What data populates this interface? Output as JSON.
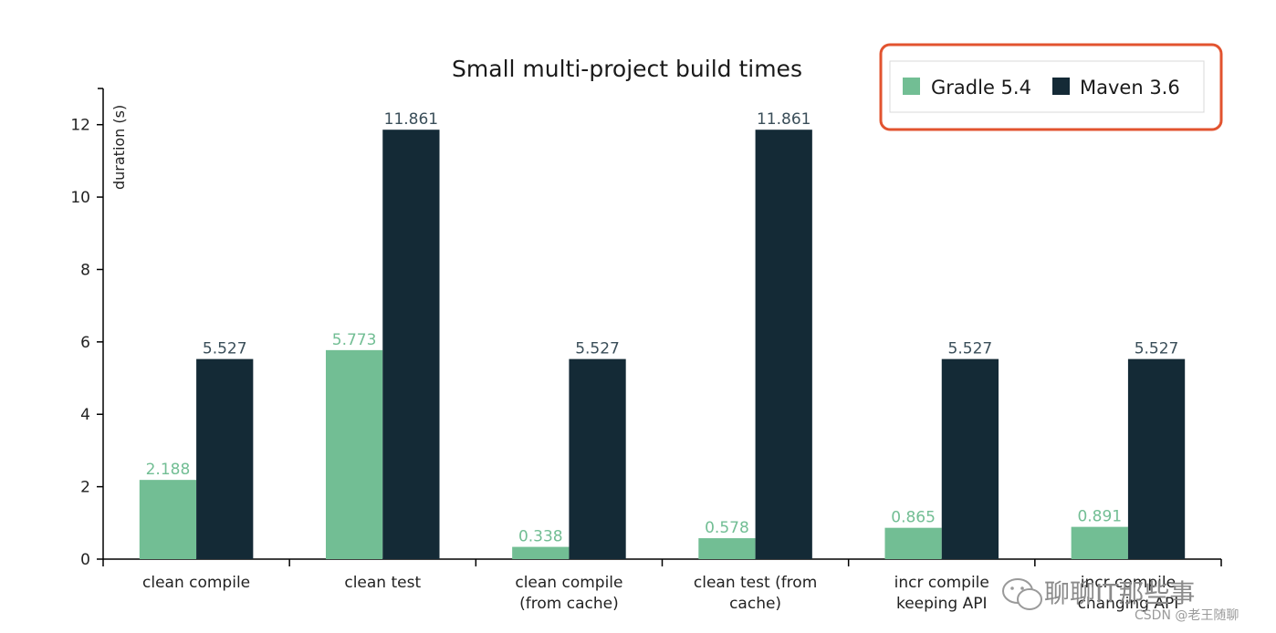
{
  "chart_data": {
    "type": "bar",
    "title": "Small multi-project build times",
    "ylabel": "duration (s)",
    "xlabel": "",
    "ylim": [
      0,
      13
    ],
    "yticks": [
      0,
      2,
      4,
      6,
      8,
      10,
      12
    ],
    "categories": [
      [
        "clean compile"
      ],
      [
        "clean test"
      ],
      [
        "clean compile",
        "(from cache)"
      ],
      [
        "clean test (from",
        "cache)"
      ],
      [
        "incr compile",
        "keeping API"
      ],
      [
        "incr compile",
        "changing API"
      ]
    ],
    "series": [
      {
        "name": "Gradle 5.4",
        "color": "#72be94",
        "labels": [
          "2.188",
          "5.773",
          "0.338",
          "0.578",
          "0.865",
          "0.891"
        ],
        "values": [
          2.188,
          5.773,
          0.338,
          0.578,
          0.865,
          0.891
        ]
      },
      {
        "name": "Maven 3.6",
        "color": "#142a36",
        "labels": [
          "5.527",
          "11.861",
          "5.527",
          "11.861",
          "5.527",
          "5.527"
        ],
        "values": [
          5.527,
          11.861,
          5.527,
          11.861,
          5.527,
          5.527
        ]
      }
    ],
    "legend_position": "top-right",
    "legend_highlight_color": "#e2532f",
    "grid": false,
    "bar_labels": true
  },
  "watermark": {
    "main": "聊聊IT那些事",
    "sub": "CSDN @老王随聊"
  }
}
